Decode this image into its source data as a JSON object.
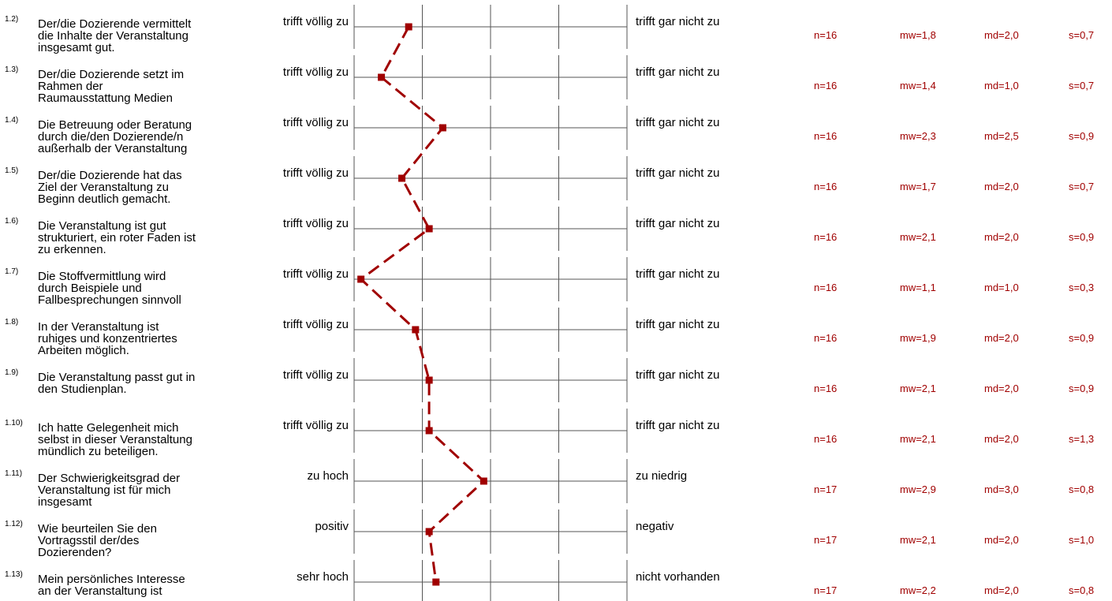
{
  "colors": {
    "series": "#a00000",
    "axis": "#555555",
    "text": "#000000"
  },
  "chart_data": {
    "type": "line",
    "scale": {
      "min": 1,
      "max": 5
    },
    "grid": true,
    "items": [
      {
        "number": "1.2)",
        "question_lines": [
          "Der/die Dozierende vermittelt",
          "die Inhalte der Veranstaltung",
          "insgesamt gut."
        ],
        "left": "trifft völlig zu",
        "right": "trifft gar nicht zu",
        "n": "n=16",
        "mw": "mw=1,8",
        "md": "md=2,0",
        "s": "s=0,7",
        "value": 1.8
      },
      {
        "number": "1.3)",
        "question_lines": [
          "Der/die Dozierende setzt im",
          "Rahmen der",
          "Raumausstattung Medien"
        ],
        "left": "trifft völlig zu",
        "right": "trifft gar nicht zu",
        "n": "n=16",
        "mw": "mw=1,4",
        "md": "md=1,0",
        "s": "s=0,7",
        "value": 1.4
      },
      {
        "number": "1.4)",
        "question_lines": [
          "Die Betreuung oder Beratung",
          "durch die/den Dozierende/n",
          "außerhalb der Veranstaltung"
        ],
        "left": "trifft völlig zu",
        "right": "trifft gar nicht zu",
        "n": "n=16",
        "mw": "mw=2,3",
        "md": "md=2,5",
        "s": "s=0,9",
        "value": 2.3
      },
      {
        "number": "1.5)",
        "question_lines": [
          "Der/die Dozierende hat das",
          "Ziel der Veranstaltung zu",
          "Beginn deutlich gemacht."
        ],
        "left": "trifft völlig zu",
        "right": "trifft gar nicht zu",
        "n": "n=16",
        "mw": "mw=1,7",
        "md": "md=2,0",
        "s": "s=0,7",
        "value": 1.7
      },
      {
        "number": "1.6)",
        "question_lines": [
          "Die Veranstaltung ist gut",
          "strukturiert, ein roter Faden ist",
          "zu erkennen."
        ],
        "left": "trifft völlig zu",
        "right": "trifft gar nicht zu",
        "n": "n=16",
        "mw": "mw=2,1",
        "md": "md=2,0",
        "s": "s=0,9",
        "value": 2.1
      },
      {
        "number": "1.7)",
        "question_lines": [
          "Die Stoffvermittlung wird",
          "durch Beispiele und",
          "Fallbesprechungen sinnvoll"
        ],
        "left": "trifft völlig zu",
        "right": "trifft gar nicht zu",
        "n": "n=16",
        "mw": "mw=1,1",
        "md": "md=1,0",
        "s": "s=0,3",
        "value": 1.1
      },
      {
        "number": "1.8)",
        "question_lines": [
          "In der Veranstaltung ist",
          "ruhiges und konzentriertes",
          "Arbeiten möglich."
        ],
        "left": "trifft völlig zu",
        "right": "trifft gar nicht zu",
        "n": "n=16",
        "mw": "mw=1,9",
        "md": "md=2,0",
        "s": "s=0,9",
        "value": 1.9
      },
      {
        "number": "1.9)",
        "question_lines": [
          "Die Veranstaltung passt gut in",
          "den Studienplan."
        ],
        "left": "trifft völlig zu",
        "right": "trifft gar nicht zu",
        "n": "n=16",
        "mw": "mw=2,1",
        "md": "md=2,0",
        "s": "s=0,9",
        "value": 2.1
      },
      {
        "number": "1.10)",
        "question_lines": [
          "Ich hatte Gelegenheit mich",
          "selbst in dieser Veranstaltung",
          "mündlich zu beteiligen."
        ],
        "left": "trifft völlig zu",
        "right": "trifft gar nicht zu",
        "n": "n=16",
        "mw": "mw=2,1",
        "md": "md=2,0",
        "s": "s=1,3",
        "value": 2.1
      },
      {
        "number": "1.11)",
        "question_lines": [
          "Der Schwierigkeitsgrad der",
          "Veranstaltung ist für mich",
          "insgesamt"
        ],
        "left": "zu hoch",
        "right": "zu niedrig",
        "n": "n=17",
        "mw": "mw=2,9",
        "md": "md=3,0",
        "s": "s=0,8",
        "value": 2.9
      },
      {
        "number": "1.12)",
        "question_lines": [
          "Wie beurteilen Sie den",
          "Vortragsstil der/des",
          "Dozierenden?"
        ],
        "left": "positiv",
        "right": "negativ",
        "n": "n=17",
        "mw": "mw=2,1",
        "md": "md=2,0",
        "s": "s=1,0",
        "value": 2.1
      },
      {
        "number": "1.13)",
        "question_lines": [
          "Mein persönliches Interesse",
          "an der Veranstaltung ist"
        ],
        "left": "sehr hoch",
        "right": "nicht vorhanden",
        "n": "n=17",
        "mw": "mw=2,2",
        "md": "md=2,0",
        "s": "s=0,8",
        "value": 2.2
      }
    ]
  }
}
